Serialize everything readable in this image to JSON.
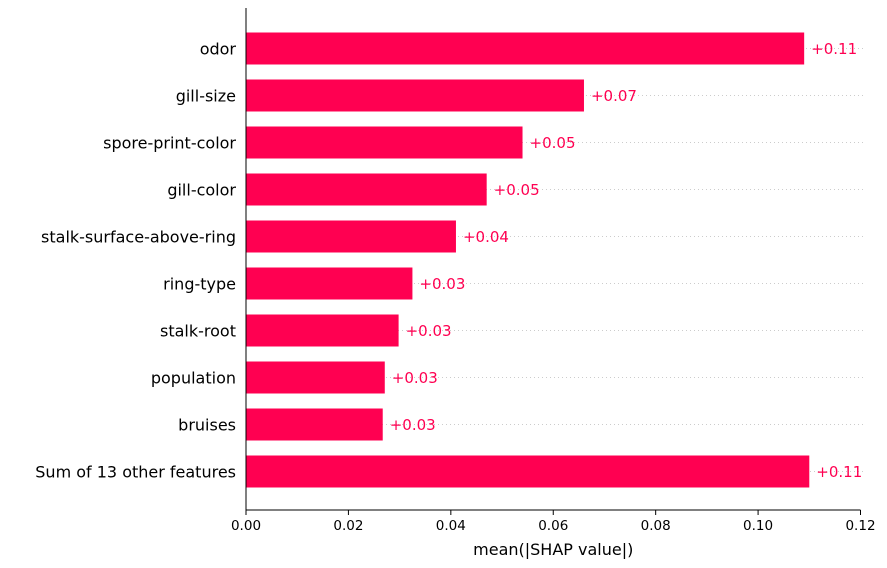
{
  "chart_data": {
    "type": "bar",
    "orientation": "horizontal",
    "categories": [
      "odor",
      "gill-size",
      "spore-print-color",
      "gill-color",
      "stalk-surface-above-ring",
      "ring-type",
      "stalk-root",
      "population",
      "bruises",
      "Sum of 13 other features"
    ],
    "values": [
      0.109,
      0.066,
      0.054,
      0.047,
      0.041,
      0.0325,
      0.0298,
      0.0271,
      0.0267,
      0.11
    ],
    "value_labels": [
      "+0.11",
      "+0.07",
      "+0.05",
      "+0.05",
      "+0.04",
      "+0.03",
      "+0.03",
      "+0.03",
      "+0.03",
      "+0.11"
    ],
    "xlabel": "mean(|SHAP value|)",
    "ylabel": "",
    "title": "",
    "xlim": [
      0,
      0.12
    ],
    "xticks": [
      "0.00",
      "0.02",
      "0.04",
      "0.06",
      "0.08",
      "0.10",
      "0.12"
    ],
    "bar_color": "#ff0051",
    "grid": "dotted horizontal guide lines",
    "legend": "none"
  }
}
